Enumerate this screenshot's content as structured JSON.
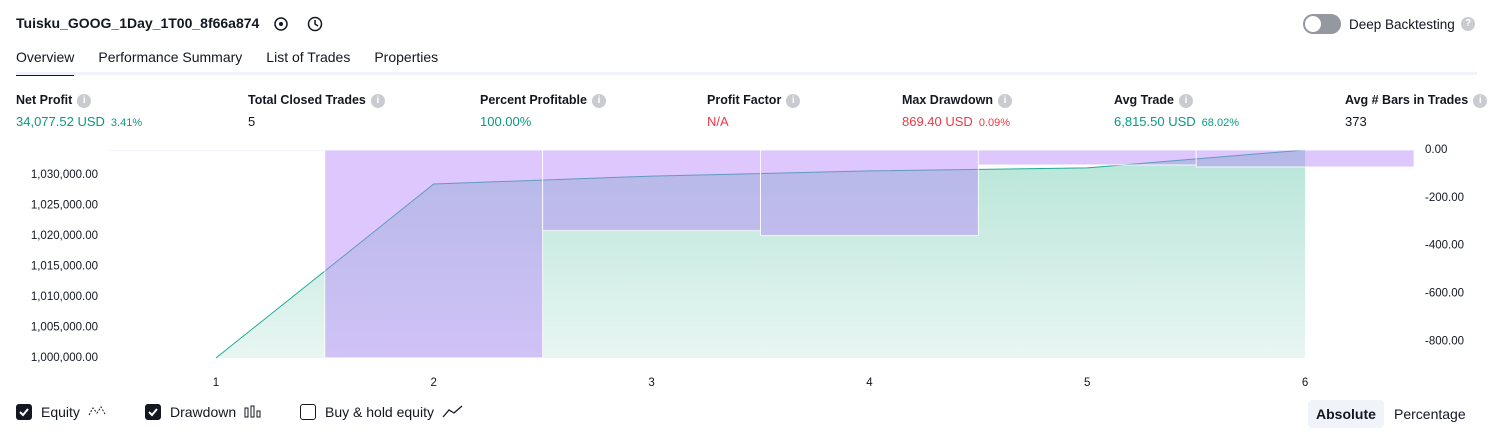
{
  "header": {
    "title": "Tuisku_GOOG_1Day_1T00_8f66a874",
    "toggle_label": "Deep Backtesting",
    "toggle_on": false
  },
  "tabs": [
    "Overview",
    "Performance Summary",
    "List of Trades",
    "Properties"
  ],
  "active_tab": 0,
  "stats": [
    {
      "label": "Net Profit",
      "value": "34,077.52 USD",
      "extra": "3.41%",
      "color": "#089981"
    },
    {
      "label": "Total Closed Trades",
      "value": "5",
      "color": "#131722"
    },
    {
      "label": "Percent Profitable",
      "value": "100.00%",
      "color": "#089981"
    },
    {
      "label": "Profit Factor",
      "value": "N/A",
      "color": "#f23645"
    },
    {
      "label": "Max Drawdown",
      "value": "869.40 USD",
      "extra": "0.09%",
      "color": "#f23645"
    },
    {
      "label": "Avg Trade",
      "value": "6,815.50 USD",
      "extra": "68.02%",
      "color": "#089981"
    },
    {
      "label": "Avg # Bars in Trades",
      "value": "373",
      "color": "#131722"
    }
  ],
  "chart_data": {
    "type": "line",
    "x": [
      1,
      2,
      3,
      4,
      5,
      6
    ],
    "xlim": [
      0.5,
      6.5
    ],
    "xticks": [
      1,
      2,
      3,
      4,
      5,
      6
    ],
    "ylim": [
      1000000,
      1034077.52
    ],
    "yticks": [
      {
        "value": 1000000,
        "label": "1,000,000.00"
      },
      {
        "value": 1005000,
        "label": "1,005,000.00"
      },
      {
        "value": 1010000,
        "label": "1,010,000.00"
      },
      {
        "value": 1015000,
        "label": "1,015,000.00"
      },
      {
        "value": 1020000,
        "label": "1,020,000.00"
      },
      {
        "value": 1025000,
        "label": "1,025,000.00"
      },
      {
        "value": 1030000,
        "label": "1,030,000.00"
      }
    ],
    "y2lim": [
      -870,
      0
    ],
    "y2ticks": [
      {
        "value": 0,
        "label": "0.00"
      },
      {
        "value": -200,
        "label": "-200.00"
      },
      {
        "value": -400,
        "label": "-400.00"
      },
      {
        "value": -600,
        "label": "-600.00"
      },
      {
        "value": -800,
        "label": "-800.00"
      }
    ],
    "series": [
      {
        "name": "Equity",
        "type": "line",
        "color": "#22ab94",
        "checked": true,
        "values": [
          1000000,
          1028500,
          1029800,
          1030650,
          1031150,
          1034077.52
        ]
      },
      {
        "name": "Drawdown",
        "type": "bar",
        "axis": "y2",
        "color": "#b482fa",
        "checked": true,
        "values": [
          0,
          -869.4,
          -337.5,
          -358,
          -62.5,
          -71
        ]
      }
    ],
    "extra_toggle": {
      "name": "Buy & hold equity",
      "checked": false
    }
  },
  "modes": [
    "Absolute",
    "Percentage"
  ],
  "active_mode": 0
}
